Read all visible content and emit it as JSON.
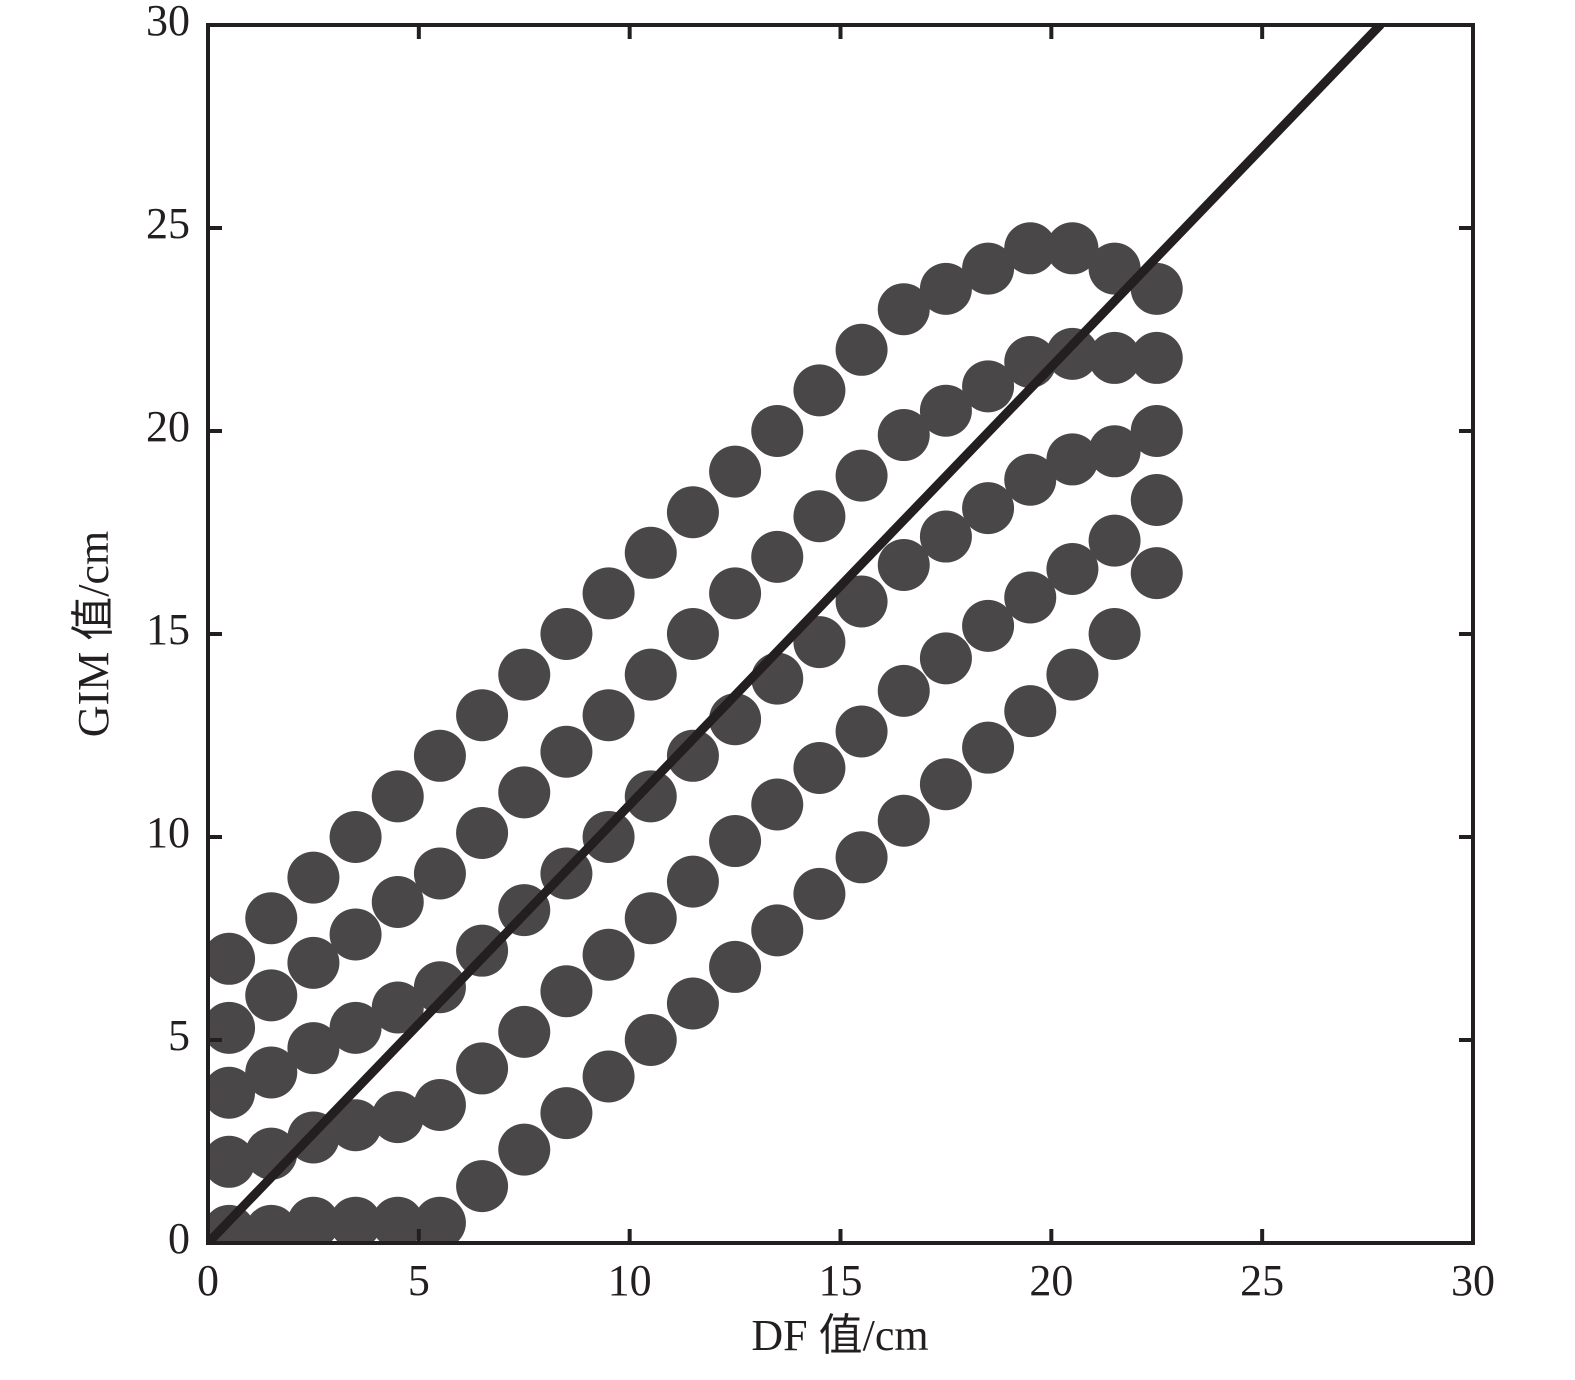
{
  "chart_data": {
    "type": "scatter",
    "x_label": "DF 值/cm",
    "y_label": "GIM 值/cm",
    "xlim": [
      0,
      30
    ],
    "ylim": [
      0,
      30
    ],
    "xticks": [
      0,
      5,
      10,
      15,
      20,
      25,
      30
    ],
    "yticks": [
      0,
      5,
      10,
      15,
      20,
      25,
      30
    ],
    "series": [
      {
        "type": "scatter",
        "color": "#4a4748",
        "x": [
          0.5,
          0.5,
          0.5,
          0.5,
          0.5,
          1.5,
          1.5,
          1.5,
          1.5,
          1.5,
          2.5,
          2.5,
          2.5,
          2.5,
          2.5,
          3.5,
          3.5,
          3.5,
          3.5,
          3.5,
          4.5,
          4.5,
          4.5,
          4.5,
          4.5,
          5.5,
          5.5,
          5.5,
          5.5,
          5.5,
          6.5,
          6.5,
          6.5,
          6.5,
          6.5,
          7.5,
          7.5,
          7.5,
          7.5,
          7.5,
          8.5,
          8.5,
          8.5,
          8.5,
          8.5,
          9.5,
          9.5,
          9.5,
          9.5,
          9.5,
          10.5,
          10.5,
          10.5,
          10.5,
          10.5,
          11.5,
          11.5,
          11.5,
          11.5,
          11.5,
          12.5,
          12.5,
          12.5,
          12.5,
          12.5,
          13.5,
          13.5,
          13.5,
          13.5,
          13.5,
          14.5,
          14.5,
          14.5,
          14.5,
          14.5,
          15.5,
          15.5,
          15.5,
          15.5,
          15.5,
          16.5,
          16.5,
          16.5,
          16.5,
          16.5,
          17.5,
          17.5,
          17.5,
          17.5,
          17.5,
          18.5,
          18.5,
          18.5,
          18.5,
          18.5,
          19.5,
          19.5,
          19.5,
          19.5,
          19.5,
          20.5,
          20.5,
          20.5,
          20.5,
          20.5,
          21.5,
          21.5,
          21.5,
          21.5,
          21.5,
          22.5,
          22.5,
          22.5,
          22.5,
          22.5
        ],
        "values": [
          0.3,
          2,
          3.7,
          5.3,
          7,
          0.3,
          2.2,
          4.2,
          6.1,
          8,
          0.5,
          2.6,
          4.8,
          6.9,
          9,
          0.5,
          2.9,
          5.3,
          7.6,
          10,
          0.5,
          3.1,
          5.8,
          8.4,
          11,
          0.5,
          3.4,
          6.3,
          9.1,
          12,
          1.4,
          4.3,
          7.2,
          10.1,
          13,
          2.3,
          5.2,
          8.2,
          11.1,
          14,
          3.2,
          6.2,
          9.1,
          12.1,
          15,
          4.1,
          7.1,
          10,
          13,
          16,
          5,
          8,
          11,
          14,
          17,
          5.9,
          8.9,
          12,
          15,
          18,
          6.8,
          9.9,
          12.9,
          16,
          19,
          7.7,
          10.8,
          13.9,
          16.9,
          20,
          8.6,
          11.7,
          14.8,
          17.9,
          21,
          9.5,
          12.6,
          15.8,
          18.9,
          22,
          10.4,
          13.6,
          16.7,
          19.9,
          23,
          11.3,
          14.4,
          17.4,
          20.5,
          23.5,
          12.2,
          15.2,
          18.1,
          21.1,
          24,
          13.1,
          15.9,
          18.8,
          21.7,
          24.5,
          14,
          16.6,
          19.3,
          21.9,
          24.5,
          15,
          17.3,
          19.5,
          21.8,
          24,
          16.5,
          18.3,
          20,
          21.8,
          23.5
        ]
      },
      {
        "type": "line",
        "color": "#231f20",
        "x": [
          0,
          27.8
        ],
        "values": [
          0,
          30
        ]
      }
    ]
  }
}
